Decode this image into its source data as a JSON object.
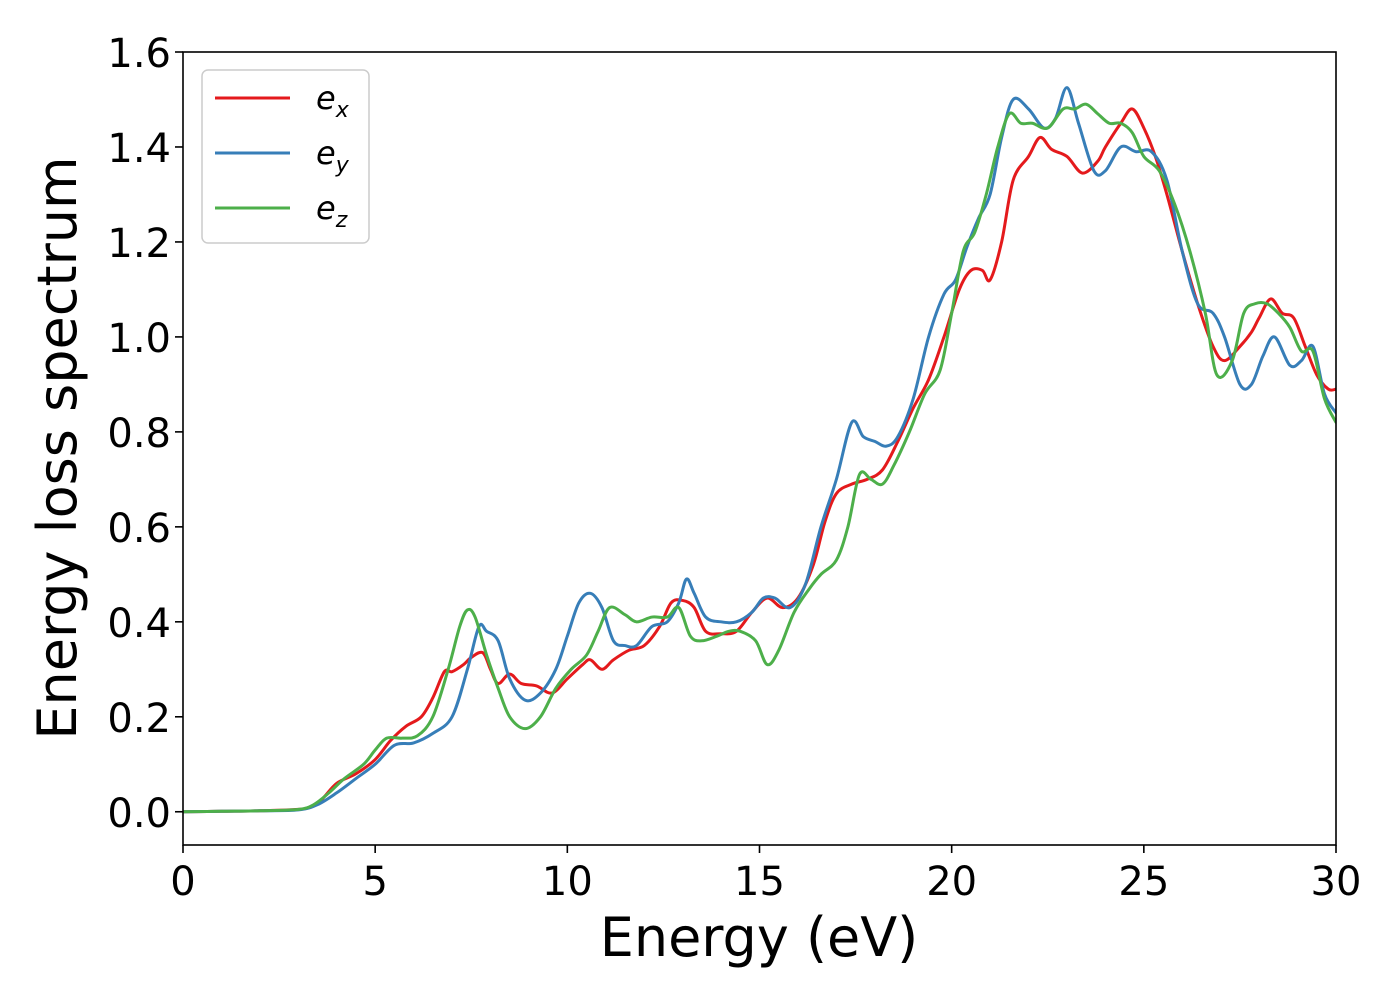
{
  "chart_data": {
    "type": "line",
    "title": "",
    "xlabel": "Energy (eV)",
    "ylabel": "Energy loss spectrum",
    "xlim": [
      0,
      30
    ],
    "ylim": [
      -0.07,
      1.6
    ],
    "xticks": [
      0,
      5,
      10,
      15,
      20,
      25,
      30
    ],
    "xtick_labels": [
      "0",
      "5",
      "10",
      "15",
      "20",
      "25",
      "30"
    ],
    "yticks": [
      0.0,
      0.2,
      0.4,
      0.6,
      0.8,
      1.0,
      1.2,
      1.4,
      1.6
    ],
    "ytick_labels": [
      "0.0",
      "0.2",
      "0.4",
      "0.6",
      "0.8",
      "1.0",
      "1.2",
      "1.4",
      "1.6"
    ],
    "grid": false,
    "legend_position": "top-left",
    "series": [
      {
        "name": "e_x",
        "label_base": "e",
        "label_sub": "x",
        "color": "#e41a1c",
        "x": [
          0,
          1,
          2,
          3,
          3.3,
          3.6,
          4,
          4.5,
          5,
          5.4,
          5.8,
          6.2,
          6.5,
          6.8,
          7.0,
          7.3,
          7.5,
          7.8,
          8.0,
          8.2,
          8.5,
          8.8,
          9.2,
          9.6,
          10.0,
          10.4,
          10.6,
          10.9,
          11.2,
          11.6,
          12.0,
          12.4,
          12.7,
          13.0,
          13.3,
          13.6,
          14.0,
          14.4,
          14.8,
          15.2,
          15.6,
          16.0,
          16.4,
          16.7,
          17.0,
          17.4,
          17.8,
          18.2,
          18.6,
          19.0,
          19.4,
          19.8,
          20.2,
          20.5,
          20.8,
          21.0,
          21.3,
          21.6,
          22.0,
          22.3,
          22.6,
          23.0,
          23.4,
          23.8,
          24.0,
          24.4,
          24.7,
          25.0,
          25.3,
          25.6,
          26.0,
          26.4,
          26.8,
          27.1,
          27.5,
          27.8,
          28.0,
          28.3,
          28.6,
          28.9,
          29.2,
          29.5,
          29.8,
          30.0
        ],
        "y": [
          0,
          0.001,
          0.002,
          0.005,
          0.01,
          0.025,
          0.06,
          0.08,
          0.11,
          0.15,
          0.18,
          0.2,
          0.24,
          0.295,
          0.295,
          0.31,
          0.325,
          0.335,
          0.3,
          0.27,
          0.29,
          0.27,
          0.265,
          0.25,
          0.28,
          0.31,
          0.32,
          0.3,
          0.32,
          0.34,
          0.35,
          0.39,
          0.44,
          0.445,
          0.43,
          0.38,
          0.375,
          0.38,
          0.42,
          0.45,
          0.43,
          0.45,
          0.52,
          0.61,
          0.67,
          0.69,
          0.7,
          0.72,
          0.78,
          0.85,
          0.91,
          1.0,
          1.1,
          1.14,
          1.14,
          1.12,
          1.2,
          1.33,
          1.38,
          1.42,
          1.395,
          1.38,
          1.345,
          1.37,
          1.4,
          1.45,
          1.48,
          1.44,
          1.38,
          1.3,
          1.18,
          1.07,
          0.98,
          0.95,
          0.98,
          1.01,
          1.04,
          1.08,
          1.05,
          1.04,
          0.98,
          0.92,
          0.89,
          0.89
        ]
      },
      {
        "name": "e_y",
        "label_base": "e",
        "label_sub": "y",
        "color": "#377eb8",
        "x": [
          0,
          1,
          2,
          3,
          3.5,
          4,
          4.5,
          5,
          5.5,
          6,
          6.5,
          7.0,
          7.4,
          7.7,
          7.9,
          8.2,
          8.5,
          8.9,
          9.3,
          9.7,
          10.0,
          10.3,
          10.6,
          10.9,
          11.2,
          11.5,
          11.8,
          12.2,
          12.6,
          12.9,
          13.1,
          13.3,
          13.6,
          14.0,
          14.4,
          14.8,
          15.1,
          15.4,
          15.8,
          16.2,
          16.6,
          17.0,
          17.4,
          17.7,
          18.0,
          18.3,
          18.6,
          19.0,
          19.4,
          19.8,
          20.1,
          20.4,
          20.7,
          21.0,
          21.3,
          21.6,
          22.0,
          22.4,
          22.7,
          23.0,
          23.3,
          23.7,
          24.0,
          24.4,
          24.8,
          25.2,
          25.6,
          26.0,
          26.4,
          26.8,
          27.1,
          27.5,
          27.8,
          28.1,
          28.4,
          28.8,
          29.1,
          29.4,
          29.7,
          30.0
        ],
        "y": [
          0,
          0.001,
          0.002,
          0.004,
          0.015,
          0.04,
          0.07,
          0.1,
          0.14,
          0.145,
          0.165,
          0.2,
          0.3,
          0.39,
          0.38,
          0.36,
          0.28,
          0.235,
          0.25,
          0.3,
          0.37,
          0.44,
          0.46,
          0.43,
          0.36,
          0.35,
          0.35,
          0.39,
          0.4,
          0.44,
          0.49,
          0.46,
          0.41,
          0.4,
          0.4,
          0.42,
          0.45,
          0.45,
          0.43,
          0.48,
          0.6,
          0.7,
          0.82,
          0.79,
          0.78,
          0.77,
          0.79,
          0.87,
          1.0,
          1.09,
          1.12,
          1.19,
          1.25,
          1.3,
          1.42,
          1.5,
          1.48,
          1.44,
          1.46,
          1.525,
          1.45,
          1.35,
          1.35,
          1.4,
          1.39,
          1.39,
          1.33,
          1.18,
          1.07,
          1.05,
          1.0,
          0.9,
          0.9,
          0.96,
          1.0,
          0.94,
          0.95,
          0.98,
          0.88,
          0.84
        ]
      },
      {
        "name": "e_z",
        "label_base": "e",
        "label_sub": "z",
        "color": "#4daf4a",
        "x": [
          0,
          1,
          2,
          3,
          3.4,
          3.8,
          4.2,
          4.7,
          5.0,
          5.3,
          5.7,
          6.1,
          6.5,
          6.9,
          7.2,
          7.4,
          7.6,
          7.9,
          8.2,
          8.5,
          8.9,
          9.3,
          9.7,
          10.1,
          10.5,
          10.8,
          11.1,
          11.5,
          11.8,
          12.2,
          12.6,
          12.9,
          13.2,
          13.5,
          13.9,
          14.2,
          14.5,
          14.9,
          15.2,
          15.5,
          15.9,
          16.3,
          16.6,
          17.0,
          17.3,
          17.6,
          17.9,
          18.2,
          18.5,
          18.9,
          19.3,
          19.7,
          20.0,
          20.3,
          20.6,
          20.9,
          21.2,
          21.5,
          21.8,
          22.1,
          22.5,
          22.9,
          23.2,
          23.5,
          23.8,
          24.1,
          24.4,
          24.7,
          25.0,
          25.4,
          25.8,
          26.2,
          26.6,
          26.9,
          27.3,
          27.6,
          27.9,
          28.2,
          28.5,
          28.8,
          29.1,
          29.4,
          29.7,
          30.0
        ],
        "y": [
          0,
          0.001,
          0.002,
          0.005,
          0.015,
          0.04,
          0.07,
          0.1,
          0.13,
          0.155,
          0.155,
          0.16,
          0.2,
          0.3,
          0.39,
          0.425,
          0.41,
          0.33,
          0.26,
          0.2,
          0.175,
          0.2,
          0.26,
          0.3,
          0.33,
          0.38,
          0.43,
          0.415,
          0.4,
          0.41,
          0.41,
          0.43,
          0.37,
          0.36,
          0.37,
          0.38,
          0.38,
          0.36,
          0.31,
          0.34,
          0.42,
          0.47,
          0.5,
          0.53,
          0.6,
          0.71,
          0.7,
          0.69,
          0.73,
          0.8,
          0.88,
          0.93,
          1.05,
          1.18,
          1.22,
          1.3,
          1.4,
          1.47,
          1.45,
          1.45,
          1.44,
          1.48,
          1.48,
          1.49,
          1.47,
          1.45,
          1.45,
          1.43,
          1.38,
          1.35,
          1.28,
          1.18,
          1.05,
          0.92,
          0.95,
          1.05,
          1.07,
          1.07,
          1.05,
          1.02,
          0.97,
          0.97,
          0.87,
          0.82
        ]
      }
    ]
  }
}
